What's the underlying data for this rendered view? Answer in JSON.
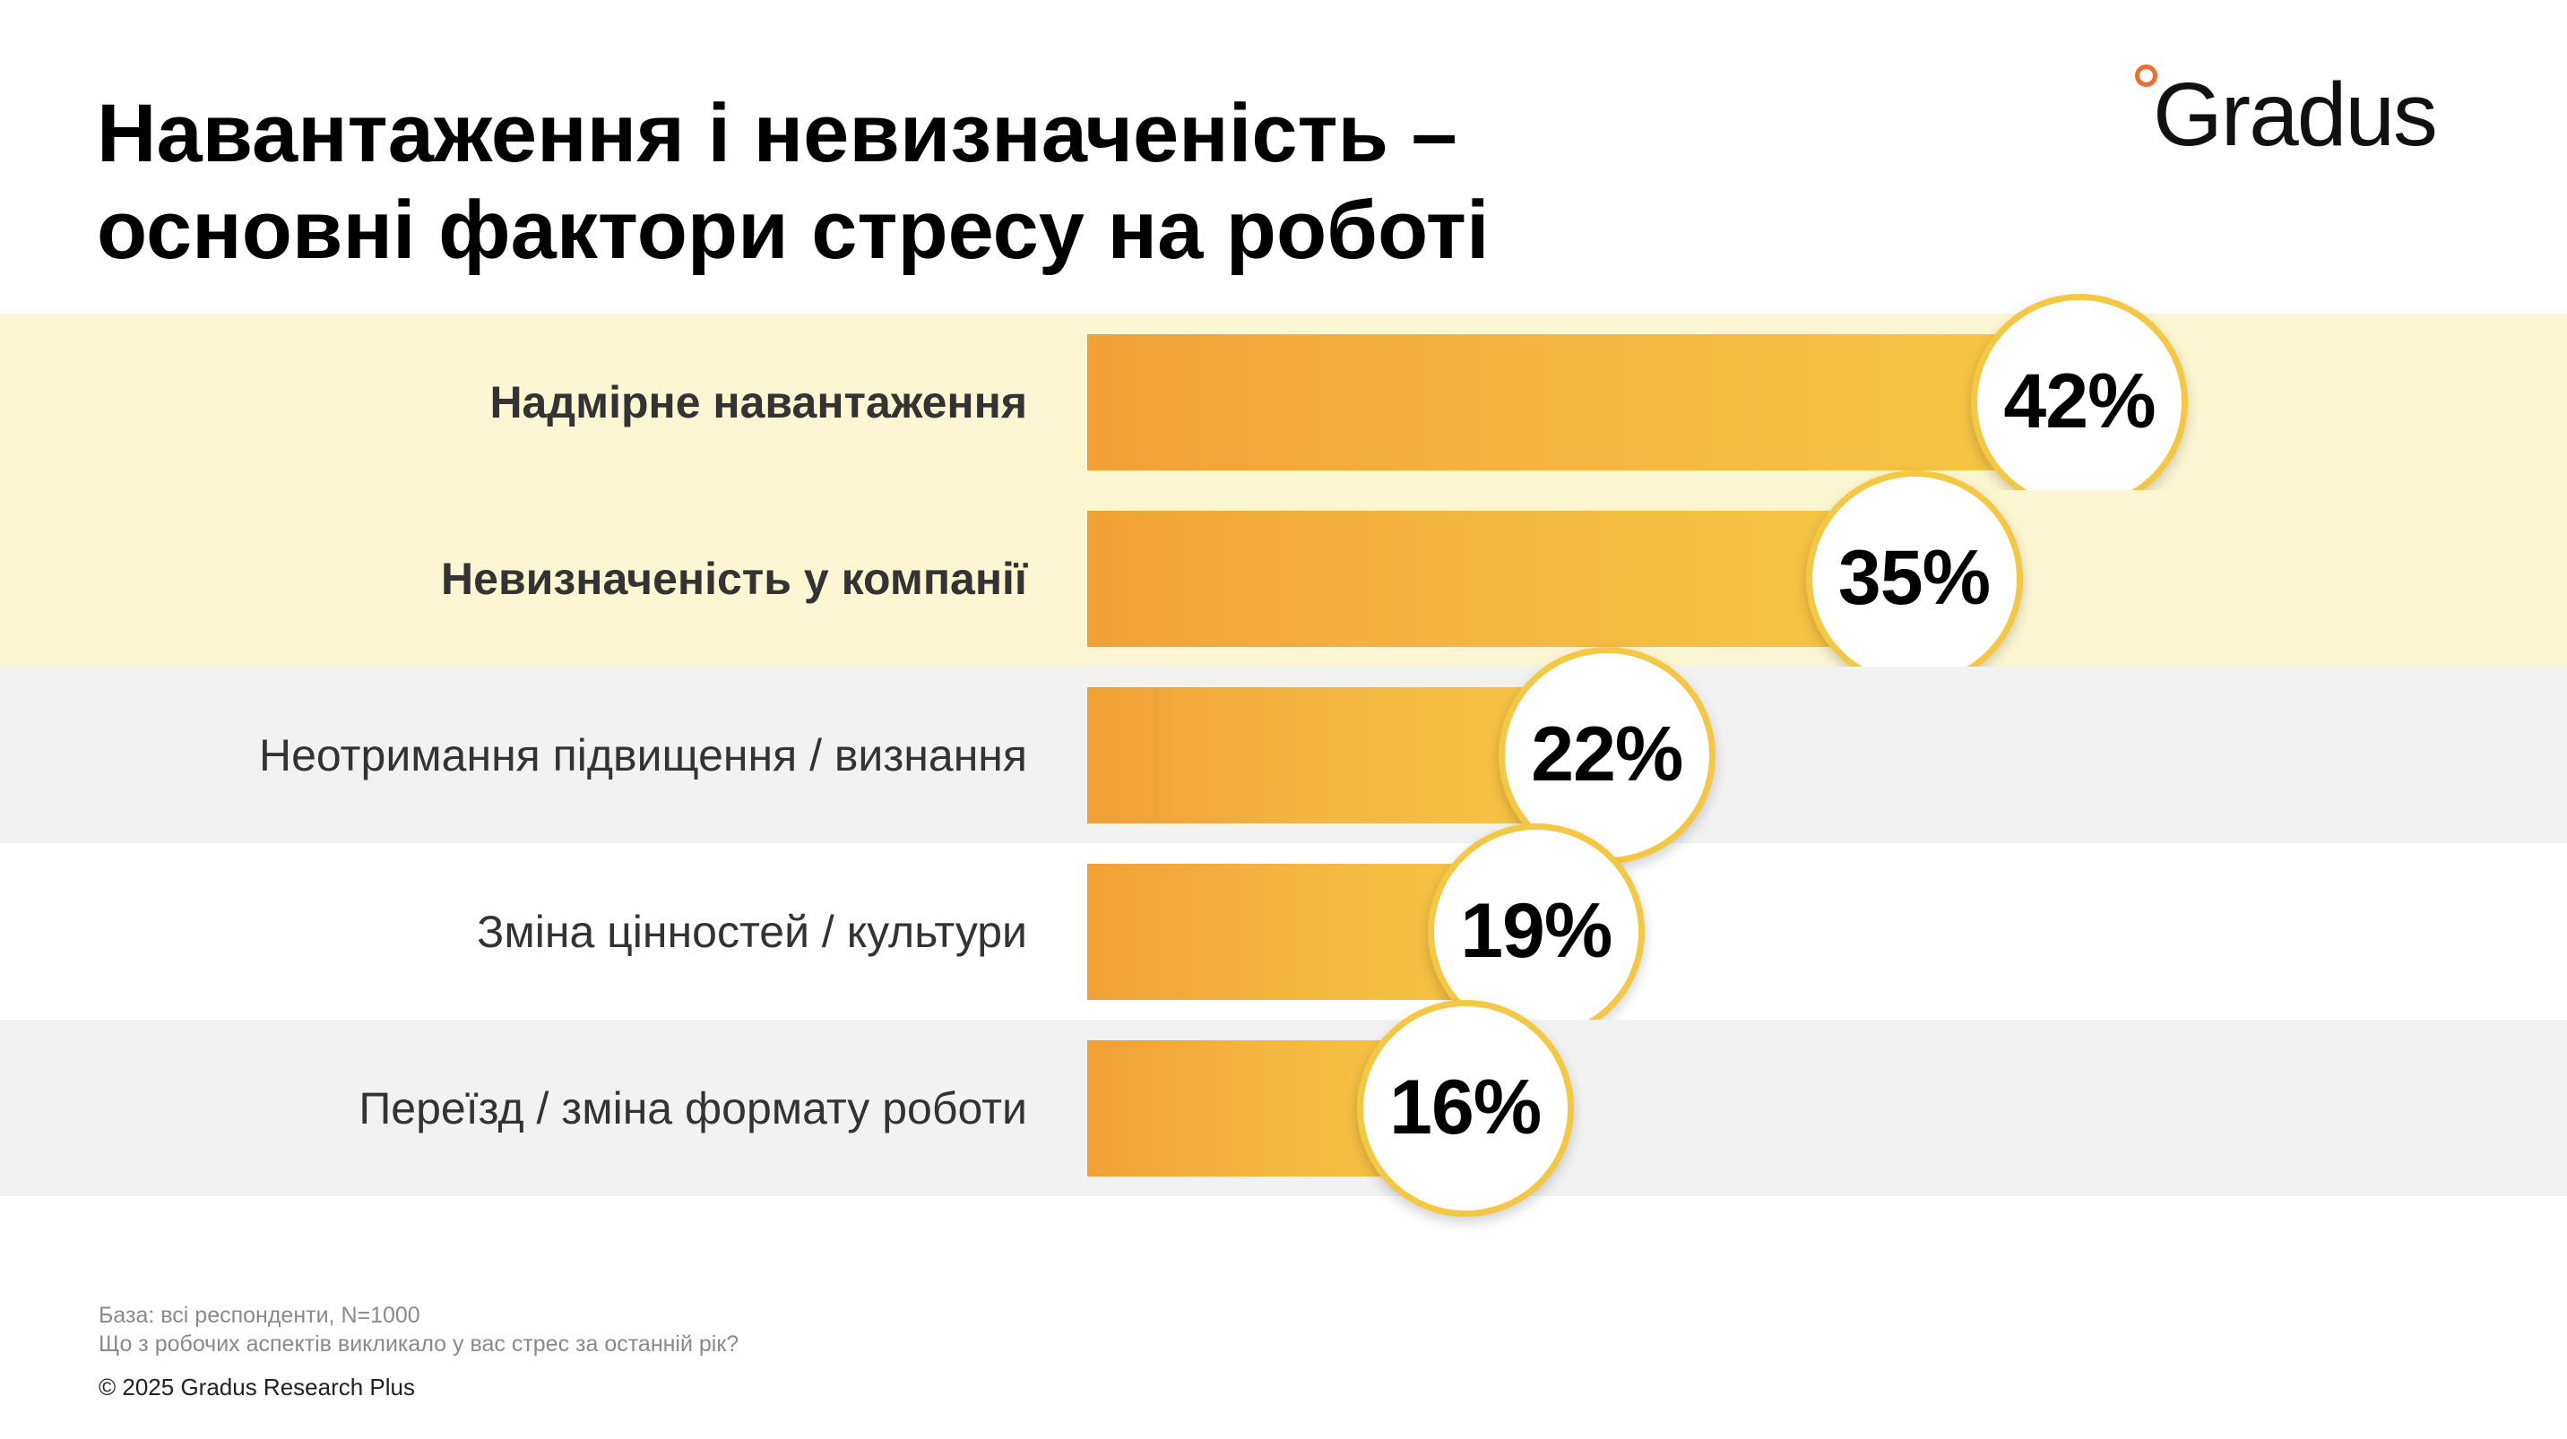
{
  "title": {
    "line1": "Навантаження і невизначеність –",
    "line2": "основні фактори стресу на роботі"
  },
  "logo": {
    "text": "Gradus",
    "dot_color": "#ee6d2f"
  },
  "colors": {
    "highlight_band": "#fdf6d2",
    "gray_band": "#f2f2f2",
    "bar_start": "#f0a035",
    "bar_end": "#f6c745",
    "bubble_border": "#f5c843"
  },
  "chart_data": {
    "type": "bar",
    "orientation": "horizontal",
    "title": "Навантаження і невизначеність – основні фактори стресу на роботі",
    "categories": [
      "Надмірне навантаження",
      "Невизначеність у компанії",
      "Неотримання підвищення / визнання",
      "Зміна цінностей / культури",
      "Переїзд / зміна формату роботи"
    ],
    "values": [
      42,
      35,
      22,
      19,
      16
    ],
    "value_labels": [
      "42%",
      "35%",
      "22%",
      "19%",
      "16%"
    ],
    "unit": "%",
    "highlighted": [
      true,
      true,
      false,
      false,
      false
    ],
    "band_styles": [
      "highlight",
      "highlight",
      "gray",
      "none",
      "gray"
    ],
    "xlim": [
      0,
      100
    ],
    "grid": false,
    "legend": "none"
  },
  "footer": {
    "base": "База: всі респонденти, N=1000",
    "question": "Що з робочих аспектів викликало у вас стрес за останній рік?",
    "copyright": "© 2025 Gradus Research Plus"
  }
}
